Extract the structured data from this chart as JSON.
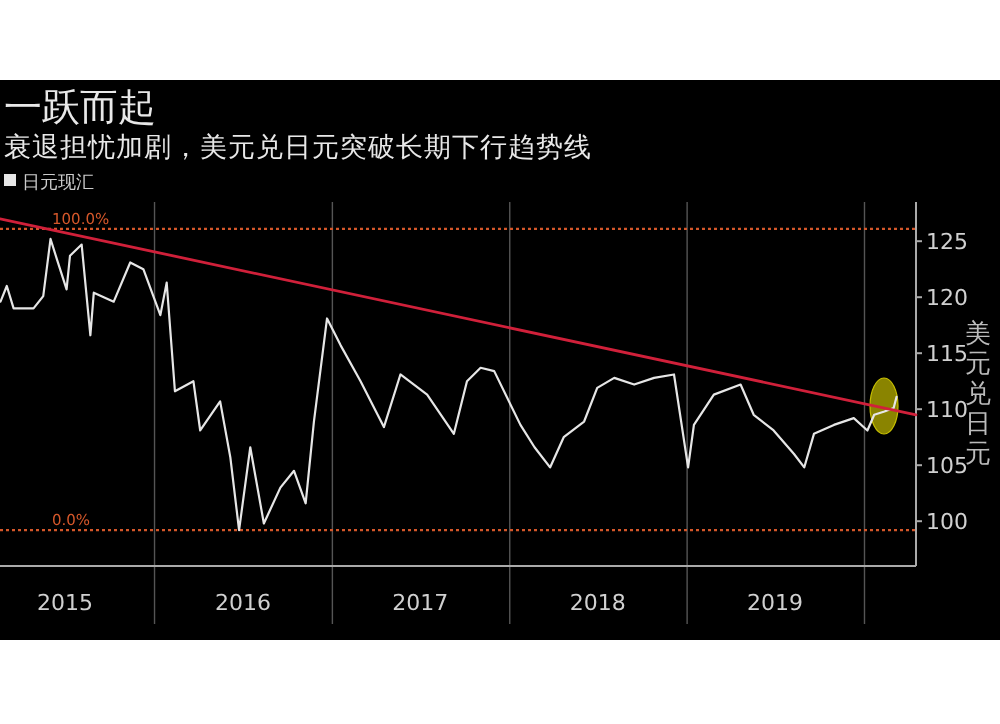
{
  "chart_data": {
    "type": "line",
    "title": "一跃而起",
    "subtitle": "衰退担忧加剧，美元兑日元突破长期下行趋势线",
    "ylabel": "美元兑日元",
    "legend": "top left",
    "grid": "x",
    "marker": "none",
    "line_style": "solid",
    "xlim": [
      "2015-02-17",
      "2020-04-16"
    ],
    "xticks": [
      {
        "value": "2015-07-01",
        "label": "2015"
      },
      {
        "value": "2016-01-01",
        "label": null
      },
      {
        "value": "2016-07-01",
        "label": "2016"
      },
      {
        "value": "2017-01-01",
        "label": null
      },
      {
        "value": "2017-07-01",
        "label": "2017"
      },
      {
        "value": "2018-01-01",
        "label": null
      },
      {
        "value": "2018-07-01",
        "label": "2018"
      },
      {
        "value": "2019-01-01",
        "label": null
      },
      {
        "value": "2019-07-01",
        "label": "2019"
      },
      {
        "value": "2020-01-01",
        "label": null
      }
    ],
    "ylim": [
      96,
      128.5
    ],
    "yticks": [
      100,
      105,
      110,
      115,
      120,
      125
    ],
    "ref_lines": [
      {
        "axis": "y",
        "value": 126.1,
        "color": "#d4572a",
        "line_style": "dotted"
      },
      {
        "axis": "y",
        "value": 99.2,
        "color": "#d4572a",
        "line_style": "dotted"
      }
    ],
    "annotations": [
      "100.0%",
      "0.0%"
    ],
    "series": [
      {
        "name": "日元现汇",
        "color": "#e6e6e6",
        "x": [
          "2015-02-18",
          "2015-03-03",
          "2015-03-17",
          "2015-04-27",
          "2015-05-17",
          "2015-06-01",
          "2015-06-14",
          "2015-07-04",
          "2015-07-11",
          "2015-08-04",
          "2015-08-22",
          "2015-08-29",
          "2015-10-09",
          "2015-11-12",
          "2015-12-09",
          "2016-01-13",
          "2016-01-26",
          "2016-02-12",
          "2016-03-21",
          "2016-04-04",
          "2016-05-15",
          "2016-06-05",
          "2016-06-23",
          "2016-07-16",
          "2016-08-13",
          "2016-09-16",
          "2016-10-14",
          "2016-11-07",
          "2016-11-24",
          "2016-12-21",
          "2017-01-18",
          "2017-02-28",
          "2017-04-17",
          "2017-05-21",
          "2017-07-15",
          "2017-09-08",
          "2017-10-05",
          "2017-11-02",
          "2017-11-30",
          "2018-01-23",
          "2018-02-21",
          "2018-03-25",
          "2018-04-22",
          "2018-06-03",
          "2018-06-30",
          "2018-08-04",
          "2018-09-14",
          "2018-10-25",
          "2018-12-05",
          "2019-01-03",
          "2019-01-15",
          "2019-02-25",
          "2019-04-21",
          "2019-05-18",
          "2019-06-28",
          "2019-08-09",
          "2019-08-30",
          "2019-09-19",
          "2019-10-30",
          "2019-12-10",
          "2020-01-07",
          "2020-01-21",
          "2020-02-11",
          "2020-03-01",
          "2020-03-07"
        ],
        "values": [
          119.6,
          121.0,
          119.0,
          119.0,
          120.1,
          125.2,
          123.4,
          120.7,
          123.7,
          124.7,
          116.6,
          120.4,
          119.6,
          123.1,
          122.5,
          118.4,
          121.3,
          111.6,
          112.5,
          108.1,
          110.7,
          105.7,
          99.2,
          106.6,
          99.8,
          103.0,
          104.5,
          101.6,
          108.9,
          118.1,
          115.7,
          112.5,
          108.4,
          113.1,
          111.3,
          107.8,
          112.5,
          113.7,
          113.4,
          108.6,
          106.6,
          104.8,
          107.5,
          108.9,
          111.9,
          112.8,
          112.2,
          112.8,
          113.1,
          104.8,
          108.6,
          111.3,
          112.2,
          109.5,
          108.1,
          106.0,
          104.8,
          107.8,
          108.6,
          109.2,
          108.1,
          109.5,
          109.8,
          110.1,
          111.1
        ]
      },
      {
        "type": "line",
        "color": "#d0203a",
        "x": [
          "2015-02-17",
          "2020-04-16"
        ],
        "values": [
          127.0,
          109.5
        ]
      }
    ]
  }
}
